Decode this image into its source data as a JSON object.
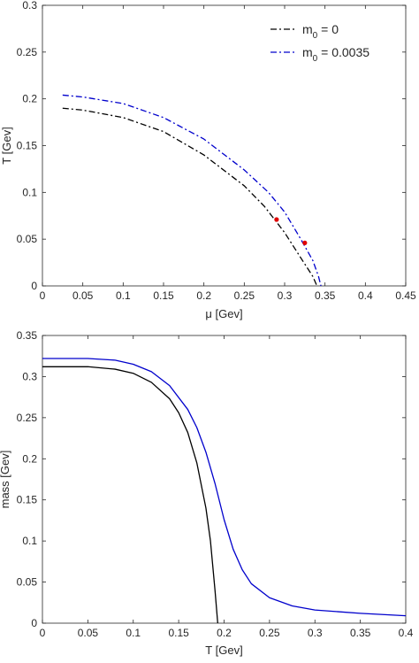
{
  "chart_data": [
    {
      "type": "line",
      "title": "",
      "xlabel": "μ [Gev]",
      "ylabel": "T [Gev]",
      "xlim": [
        0,
        0.45
      ],
      "ylim": [
        0,
        0.3
      ],
      "xticks": [
        "0",
        "0.05",
        "0.1",
        "0.15",
        "0.2",
        "0.25",
        "0.3",
        "0.35",
        "0.4",
        "0.45"
      ],
      "yticks": [
        "0",
        "0.05",
        "0.1",
        "0.15",
        "0.2",
        "0.25",
        "0.3"
      ],
      "grid": false,
      "legend_position": "top-right",
      "series": [
        {
          "name": "m",
          "name_sub": "0",
          "name_suffix": " = 0",
          "color": "#000000",
          "style": "dash-dot",
          "x": [
            0.025,
            0.05,
            0.1,
            0.15,
            0.2,
            0.25,
            0.275,
            0.3,
            0.32,
            0.335,
            0.34
          ],
          "y": [
            0.19,
            0.188,
            0.18,
            0.165,
            0.14,
            0.107,
            0.085,
            0.057,
            0.03,
            0.01,
            0.0
          ]
        },
        {
          "name": "m",
          "name_sub": "0",
          "name_suffix": " = 0.0035",
          "color": "#0000cc",
          "style": "dash-dot",
          "x": [
            0.025,
            0.05,
            0.1,
            0.15,
            0.2,
            0.25,
            0.28,
            0.3,
            0.32,
            0.335,
            0.342,
            0.345
          ],
          "y": [
            0.204,
            0.202,
            0.195,
            0.18,
            0.157,
            0.124,
            0.1,
            0.079,
            0.05,
            0.027,
            0.01,
            0.0
          ]
        }
      ],
      "markers": [
        {
          "x": 0.29,
          "y": 0.071,
          "color": "#e00000"
        },
        {
          "x": 0.325,
          "y": 0.046,
          "color": "#e00000"
        }
      ]
    },
    {
      "type": "line",
      "title": "",
      "xlabel": "T [Gev]",
      "ylabel": "mass [Gev]",
      "xlim": [
        0,
        0.4
      ],
      "ylim": [
        0,
        0.35
      ],
      "xticks": [
        "0",
        "0.05",
        "0.1",
        "0.15",
        "0.2",
        "0.25",
        "0.3",
        "0.35",
        "0.4"
      ],
      "yticks": [
        "0",
        "0.05",
        "0.1",
        "0.15",
        "0.2",
        "0.25",
        "0.3",
        "0.35"
      ],
      "grid": false,
      "series": [
        {
          "color": "#000000",
          "style": "solid",
          "x": [
            0,
            0.05,
            0.08,
            0.1,
            0.12,
            0.14,
            0.15,
            0.16,
            0.17,
            0.18,
            0.185,
            0.19,
            0.193
          ],
          "y": [
            0.312,
            0.312,
            0.309,
            0.304,
            0.293,
            0.273,
            0.256,
            0.232,
            0.195,
            0.14,
            0.1,
            0.04,
            0.0
          ]
        },
        {
          "color": "#0000cc",
          "style": "solid",
          "x": [
            0,
            0.05,
            0.08,
            0.1,
            0.12,
            0.14,
            0.16,
            0.17,
            0.18,
            0.19,
            0.2,
            0.21,
            0.22,
            0.23,
            0.25,
            0.275,
            0.3,
            0.35,
            0.4
          ],
          "y": [
            0.322,
            0.322,
            0.32,
            0.315,
            0.306,
            0.289,
            0.26,
            0.238,
            0.208,
            0.17,
            0.126,
            0.09,
            0.065,
            0.048,
            0.031,
            0.021,
            0.016,
            0.012,
            0.009
          ]
        }
      ]
    }
  ]
}
